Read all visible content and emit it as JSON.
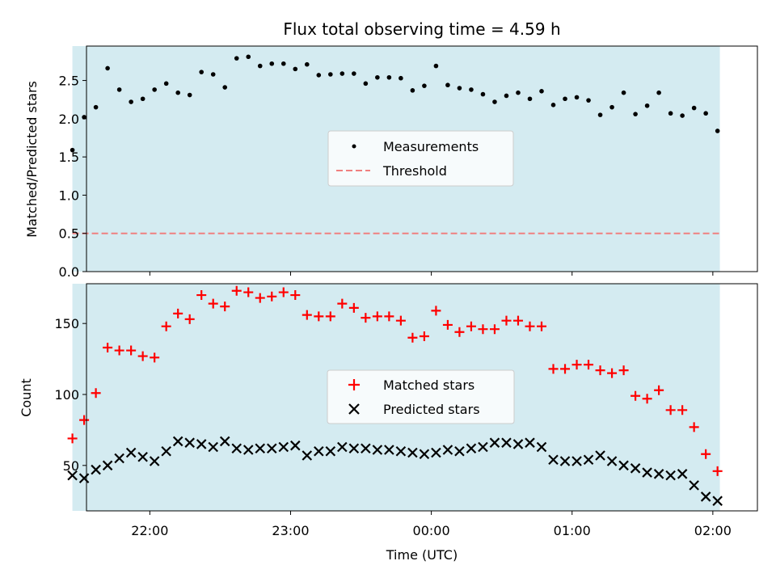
{
  "title": "Flux total observing time = 4.59 h",
  "xlabel": "Time (UTC)",
  "xtick_labels": [
    "22:00",
    "23:00",
    "00:00",
    "01:00",
    "02:00"
  ],
  "xlim": [
    "21:33",
    "02:19"
  ],
  "colors": {
    "background": "#d4ebf1",
    "measurements": "#000000",
    "threshold": "#f08080",
    "matched": "#ff0000",
    "predicted": "#000000"
  },
  "chart_data": [
    {
      "type": "scatter",
      "ylabel": "Matched/Predicted stars",
      "ylim": [
        0,
        2.95
      ],
      "yticks": [
        "0.0",
        "0.5",
        "1.0",
        "1.5",
        "2.0",
        "2.5"
      ],
      "legend_placement": "center",
      "shaded_interval": [
        "21:27",
        "02:03"
      ],
      "threshold": {
        "name": "Threshold",
        "value": 0.5
      },
      "series": [
        {
          "name": "Measurements",
          "marker": "dot",
          "x": [
            "21:27",
            "21:32",
            "21:37",
            "21:42",
            "21:47",
            "21:52",
            "21:57",
            "22:02",
            "22:07",
            "22:12",
            "22:17",
            "22:22",
            "22:27",
            "22:32",
            "22:37",
            "22:42",
            "22:47",
            "22:52",
            "22:57",
            "23:02",
            "23:07",
            "23:12",
            "23:17",
            "23:22",
            "23:27",
            "23:32",
            "23:37",
            "23:42",
            "23:47",
            "23:52",
            "23:57",
            "00:02",
            "00:07",
            "00:12",
            "00:17",
            "00:22",
            "00:27",
            "00:32",
            "00:37",
            "00:42",
            "00:47",
            "00:52",
            "00:57",
            "01:02",
            "01:07",
            "01:12",
            "01:17",
            "01:22",
            "01:27",
            "01:32",
            "01:37",
            "01:42",
            "01:47",
            "01:52",
            "01:57",
            "02:02"
          ],
          "values": [
            1.59,
            2.02,
            2.15,
            2.66,
            2.38,
            2.22,
            2.26,
            2.38,
            2.46,
            2.34,
            2.31,
            2.61,
            2.58,
            2.41,
            2.79,
            2.81,
            2.69,
            2.72,
            2.72,
            2.65,
            2.71,
            2.57,
            2.58,
            2.59,
            2.59,
            2.46,
            2.54,
            2.54,
            2.53,
            2.37,
            2.43,
            2.69,
            2.44,
            2.4,
            2.38,
            2.32,
            2.22,
            2.3,
            2.34,
            2.26,
            2.36,
            2.18,
            2.26,
            2.28,
            2.24,
            2.05,
            2.15,
            2.34,
            2.06,
            2.17,
            2.34,
            2.07,
            2.04,
            2.14,
            2.07,
            1.84
          ]
        }
      ]
    },
    {
      "type": "scatter",
      "ylabel": "Count",
      "ylim": [
        18,
        178
      ],
      "yticks": [
        "50",
        "100",
        "150"
      ],
      "legend_placement": "center",
      "shaded_interval": [
        "21:27",
        "02:03"
      ],
      "series": [
        {
          "name": "Matched stars",
          "marker": "plus",
          "x": [
            "21:27",
            "21:32",
            "21:37",
            "21:42",
            "21:47",
            "21:52",
            "21:57",
            "22:02",
            "22:07",
            "22:12",
            "22:17",
            "22:22",
            "22:27",
            "22:32",
            "22:37",
            "22:42",
            "22:47",
            "22:52",
            "22:57",
            "23:02",
            "23:07",
            "23:12",
            "23:17",
            "23:22",
            "23:27",
            "23:32",
            "23:37",
            "23:42",
            "23:47",
            "23:52",
            "23:57",
            "00:02",
            "00:07",
            "00:12",
            "00:17",
            "00:22",
            "00:27",
            "00:32",
            "00:37",
            "00:42",
            "00:47",
            "00:52",
            "00:57",
            "01:02",
            "01:07",
            "01:12",
            "01:17",
            "01:22",
            "01:27",
            "01:32",
            "01:37",
            "01:42",
            "01:47",
            "01:52",
            "01:57",
            "02:02"
          ],
          "values": [
            69,
            82,
            101,
            133,
            131,
            131,
            127,
            126,
            148,
            157,
            153,
            170,
            164,
            162,
            173,
            172,
            168,
            169,
            172,
            170,
            156,
            155,
            155,
            164,
            161,
            154,
            155,
            155,
            152,
            140,
            141,
            159,
            149,
            144,
            148,
            146,
            146,
            152,
            152,
            148,
            148,
            118,
            118,
            121,
            121,
            117,
            115,
            117,
            99,
            97,
            103,
            89,
            89,
            77,
            58,
            46
          ]
        },
        {
          "name": "Predicted stars",
          "marker": "x",
          "x": [
            "21:27",
            "21:32",
            "21:37",
            "21:42",
            "21:47",
            "21:52",
            "21:57",
            "22:02",
            "22:07",
            "22:12",
            "22:17",
            "22:22",
            "22:27",
            "22:32",
            "22:37",
            "22:42",
            "22:47",
            "22:52",
            "22:57",
            "23:02",
            "23:07",
            "23:12",
            "23:17",
            "23:22",
            "23:27",
            "23:32",
            "23:37",
            "23:42",
            "23:47",
            "23:52",
            "23:57",
            "00:02",
            "00:07",
            "00:12",
            "00:17",
            "00:22",
            "00:27",
            "00:32",
            "00:37",
            "00:42",
            "00:47",
            "00:52",
            "00:57",
            "01:02",
            "01:07",
            "01:12",
            "01:17",
            "01:22",
            "01:27",
            "01:32",
            "01:37",
            "01:42",
            "01:47",
            "01:52",
            "01:57",
            "02:02"
          ],
          "values": [
            43,
            41,
            47,
            50,
            55,
            59,
            56,
            53,
            60,
            67,
            66,
            65,
            63,
            67,
            62,
            61,
            62,
            62,
            63,
            64,
            57,
            60,
            60,
            63,
            62,
            62,
            61,
            61,
            60,
            59,
            58,
            59,
            61,
            60,
            62,
            63,
            66,
            66,
            65,
            66,
            63,
            54,
            53,
            53,
            54,
            57,
            53,
            50,
            48,
            45,
            44,
            43,
            44,
            36,
            28,
            25
          ]
        }
      ]
    }
  ]
}
